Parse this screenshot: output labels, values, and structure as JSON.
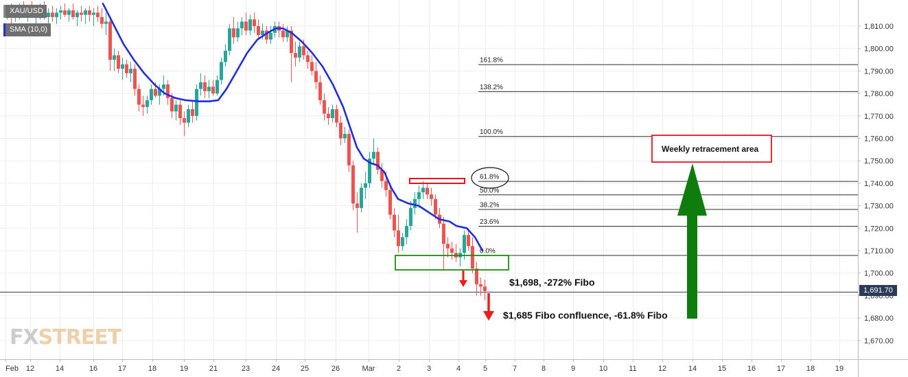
{
  "chart_data": {
    "type": "candlestick",
    "symbol": "XAU/USD",
    "indicator": "SMA (10,0)",
    "last_price_label": "1,691.70",
    "last_price": 1691.7,
    "y_axis": {
      "ticks": [
        1670,
        1680,
        1690,
        1700,
        1710,
        1720,
        1730,
        1740,
        1750,
        1760,
        1770,
        1780,
        1790,
        1800,
        1810
      ],
      "tick_labels": [
        "1,670.00",
        "1,680.00",
        "1,690.00",
        "1,700.00",
        "1,710.00",
        "1,720.00",
        "1,730.00",
        "1,740.00",
        "1,750.00",
        "1,760.00",
        "1,770.00",
        "1,780.00",
        "1,790.00",
        "1,800.00",
        "1,810.00"
      ],
      "range": [
        1662,
        1821
      ]
    },
    "x_axis": {
      "labels": [
        "Feb",
        "12",
        "14",
        "16",
        "17",
        "18",
        "19",
        "21",
        "23",
        "24",
        "25",
        "26",
        "Mar",
        "2",
        "3",
        "4",
        "5",
        "7",
        "8",
        "9",
        "10",
        "11",
        "12",
        "14",
        "15",
        "16",
        "17",
        "18",
        "19"
      ],
      "range": [
        -0.5,
        297.5
      ]
    },
    "candles": [
      {
        "x": 10,
        "o": 1816,
        "h": 1819,
        "l": 1813,
        "c": 1817
      },
      {
        "x": 16,
        "o": 1817,
        "h": 1820,
        "l": 1810,
        "c": 1815
      },
      {
        "x": 22,
        "o": 1815,
        "h": 1818,
        "l": 1812,
        "c": 1816
      },
      {
        "x": 28,
        "o": 1816,
        "h": 1820,
        "l": 1813,
        "c": 1818
      },
      {
        "x": 34,
        "o": 1818,
        "h": 1821,
        "l": 1814,
        "c": 1815
      },
      {
        "x": 40,
        "o": 1815,
        "h": 1819,
        "l": 1812,
        "c": 1817
      },
      {
        "x": 46,
        "o": 1817,
        "h": 1821,
        "l": 1814,
        "c": 1815
      },
      {
        "x": 52,
        "o": 1815,
        "h": 1818,
        "l": 1810,
        "c": 1816
      },
      {
        "x": 58,
        "o": 1816,
        "h": 1820,
        "l": 1813,
        "c": 1818
      },
      {
        "x": 64,
        "o": 1818,
        "h": 1821,
        "l": 1813,
        "c": 1814
      },
      {
        "x": 70,
        "o": 1814,
        "h": 1818,
        "l": 1811,
        "c": 1816
      },
      {
        "x": 76,
        "o": 1816,
        "h": 1819,
        "l": 1812,
        "c": 1814
      },
      {
        "x": 82,
        "o": 1814,
        "h": 1818,
        "l": 1811,
        "c": 1816
      },
      {
        "x": 88,
        "o": 1816,
        "h": 1819,
        "l": 1813,
        "c": 1817
      },
      {
        "x": 94,
        "o": 1817,
        "h": 1820,
        "l": 1814,
        "c": 1815
      },
      {
        "x": 100,
        "o": 1815,
        "h": 1818,
        "l": 1812,
        "c": 1817
      },
      {
        "x": 106,
        "o": 1817,
        "h": 1820,
        "l": 1813,
        "c": 1814
      },
      {
        "x": 112,
        "o": 1814,
        "h": 1817,
        "l": 1810,
        "c": 1816
      },
      {
        "x": 118,
        "o": 1816,
        "h": 1819,
        "l": 1812,
        "c": 1815
      },
      {
        "x": 124,
        "o": 1815,
        "h": 1818,
        "l": 1811,
        "c": 1817
      },
      {
        "x": 130,
        "o": 1817,
        "h": 1819,
        "l": 1812,
        "c": 1815
      },
      {
        "x": 136,
        "o": 1815,
        "h": 1818,
        "l": 1810,
        "c": 1816
      },
      {
        "x": 142,
        "o": 1816,
        "h": 1819,
        "l": 1812,
        "c": 1814
      },
      {
        "x": 148,
        "o": 1814,
        "h": 1818,
        "l": 1809,
        "c": 1811
      },
      {
        "x": 154,
        "o": 1811,
        "h": 1816,
        "l": 1806,
        "c": 1812
      },
      {
        "x": 160,
        "o": 1812,
        "h": 1813,
        "l": 1790,
        "c": 1795
      },
      {
        "x": 166,
        "o": 1795,
        "h": 1800,
        "l": 1790,
        "c": 1797
      },
      {
        "x": 172,
        "o": 1797,
        "h": 1799,
        "l": 1789,
        "c": 1791
      },
      {
        "x": 178,
        "o": 1791,
        "h": 1796,
        "l": 1786,
        "c": 1793
      },
      {
        "x": 184,
        "o": 1793,
        "h": 1795,
        "l": 1787,
        "c": 1789
      },
      {
        "x": 190,
        "o": 1789,
        "h": 1794,
        "l": 1785,
        "c": 1791
      },
      {
        "x": 196,
        "o": 1791,
        "h": 1793,
        "l": 1779,
        "c": 1782
      },
      {
        "x": 202,
        "o": 1782,
        "h": 1784,
        "l": 1772,
        "c": 1775
      },
      {
        "x": 208,
        "o": 1775,
        "h": 1779,
        "l": 1770,
        "c": 1774
      },
      {
        "x": 214,
        "o": 1774,
        "h": 1779,
        "l": 1771,
        "c": 1777
      },
      {
        "x": 220,
        "o": 1777,
        "h": 1784,
        "l": 1775,
        "c": 1782
      },
      {
        "x": 226,
        "o": 1782,
        "h": 1785,
        "l": 1778,
        "c": 1779
      },
      {
        "x": 232,
        "o": 1779,
        "h": 1784,
        "l": 1775,
        "c": 1782
      },
      {
        "x": 238,
        "o": 1782,
        "h": 1788,
        "l": 1779,
        "c": 1784
      },
      {
        "x": 244,
        "o": 1784,
        "h": 1786,
        "l": 1775,
        "c": 1778
      },
      {
        "x": 250,
        "o": 1778,
        "h": 1780,
        "l": 1769,
        "c": 1772
      },
      {
        "x": 256,
        "o": 1772,
        "h": 1777,
        "l": 1768,
        "c": 1775
      },
      {
        "x": 262,
        "o": 1775,
        "h": 1777,
        "l": 1766,
        "c": 1769
      },
      {
        "x": 268,
        "o": 1769,
        "h": 1772,
        "l": 1761,
        "c": 1767
      },
      {
        "x": 274,
        "o": 1767,
        "h": 1775,
        "l": 1765,
        "c": 1773
      },
      {
        "x": 280,
        "o": 1773,
        "h": 1777,
        "l": 1767,
        "c": 1770
      },
      {
        "x": 286,
        "o": 1770,
        "h": 1784,
        "l": 1768,
        "c": 1782
      },
      {
        "x": 292,
        "o": 1782,
        "h": 1789,
        "l": 1779,
        "c": 1785
      },
      {
        "x": 298,
        "o": 1785,
        "h": 1788,
        "l": 1778,
        "c": 1781
      },
      {
        "x": 304,
        "o": 1781,
        "h": 1786,
        "l": 1778,
        "c": 1783
      },
      {
        "x": 310,
        "o": 1783,
        "h": 1786,
        "l": 1779,
        "c": 1780
      },
      {
        "x": 316,
        "o": 1780,
        "h": 1788,
        "l": 1779,
        "c": 1786
      },
      {
        "x": 322,
        "o": 1786,
        "h": 1796,
        "l": 1784,
        "c": 1794
      },
      {
        "x": 328,
        "o": 1794,
        "h": 1802,
        "l": 1792,
        "c": 1799
      },
      {
        "x": 334,
        "o": 1799,
        "h": 1811,
        "l": 1797,
        "c": 1809
      },
      {
        "x": 340,
        "o": 1809,
        "h": 1814,
        "l": 1802,
        "c": 1805
      },
      {
        "x": 346,
        "o": 1805,
        "h": 1812,
        "l": 1803,
        "c": 1809
      },
      {
        "x": 352,
        "o": 1809,
        "h": 1814,
        "l": 1806,
        "c": 1812
      },
      {
        "x": 358,
        "o": 1812,
        "h": 1816,
        "l": 1806,
        "c": 1808
      },
      {
        "x": 364,
        "o": 1808,
        "h": 1815,
        "l": 1806,
        "c": 1813
      },
      {
        "x": 370,
        "o": 1813,
        "h": 1816,
        "l": 1807,
        "c": 1810
      },
      {
        "x": 376,
        "o": 1810,
        "h": 1813,
        "l": 1804,
        "c": 1806
      },
      {
        "x": 382,
        "o": 1806,
        "h": 1811,
        "l": 1804,
        "c": 1808
      },
      {
        "x": 388,
        "o": 1808,
        "h": 1810,
        "l": 1802,
        "c": 1804
      },
      {
        "x": 394,
        "o": 1804,
        "h": 1810,
        "l": 1802,
        "c": 1807
      },
      {
        "x": 400,
        "o": 1807,
        "h": 1812,
        "l": 1805,
        "c": 1810
      },
      {
        "x": 406,
        "o": 1810,
        "h": 1812,
        "l": 1805,
        "c": 1808
      },
      {
        "x": 412,
        "o": 1808,
        "h": 1811,
        "l": 1803,
        "c": 1805
      },
      {
        "x": 418,
        "o": 1805,
        "h": 1810,
        "l": 1803,
        "c": 1808
      },
      {
        "x": 424,
        "o": 1808,
        "h": 1810,
        "l": 1785,
        "c": 1798
      },
      {
        "x": 430,
        "o": 1798,
        "h": 1803,
        "l": 1792,
        "c": 1796
      },
      {
        "x": 436,
        "o": 1796,
        "h": 1803,
        "l": 1794,
        "c": 1801
      },
      {
        "x": 442,
        "o": 1801,
        "h": 1804,
        "l": 1795,
        "c": 1797
      },
      {
        "x": 448,
        "o": 1797,
        "h": 1799,
        "l": 1791,
        "c": 1794
      },
      {
        "x": 454,
        "o": 1794,
        "h": 1797,
        "l": 1788,
        "c": 1790
      },
      {
        "x": 460,
        "o": 1790,
        "h": 1794,
        "l": 1782,
        "c": 1785
      },
      {
        "x": 466,
        "o": 1785,
        "h": 1788,
        "l": 1775,
        "c": 1777
      },
      {
        "x": 472,
        "o": 1777,
        "h": 1780,
        "l": 1768,
        "c": 1771
      },
      {
        "x": 478,
        "o": 1771,
        "h": 1774,
        "l": 1766,
        "c": 1769
      },
      {
        "x": 484,
        "o": 1769,
        "h": 1775,
        "l": 1767,
        "c": 1773
      },
      {
        "x": 490,
        "o": 1773,
        "h": 1775,
        "l": 1765,
        "c": 1767
      },
      {
        "x": 496,
        "o": 1767,
        "h": 1770,
        "l": 1757,
        "c": 1760
      },
      {
        "x": 502,
        "o": 1760,
        "h": 1765,
        "l": 1758,
        "c": 1762
      },
      {
        "x": 508,
        "o": 1762,
        "h": 1764,
        "l": 1745,
        "c": 1748
      },
      {
        "x": 514,
        "o": 1748,
        "h": 1750,
        "l": 1728,
        "c": 1731
      },
      {
        "x": 520,
        "o": 1731,
        "h": 1736,
        "l": 1718,
        "c": 1729
      },
      {
        "x": 526,
        "o": 1729,
        "h": 1740,
        "l": 1727,
        "c": 1738
      },
      {
        "x": 532,
        "o": 1738,
        "h": 1745,
        "l": 1733,
        "c": 1740
      },
      {
        "x": 538,
        "o": 1740,
        "h": 1754,
        "l": 1738,
        "c": 1751
      },
      {
        "x": 544,
        "o": 1751,
        "h": 1760,
        "l": 1748,
        "c": 1754
      },
      {
        "x": 550,
        "o": 1754,
        "h": 1756,
        "l": 1744,
        "c": 1746
      },
      {
        "x": 556,
        "o": 1746,
        "h": 1749,
        "l": 1738,
        "c": 1741
      },
      {
        "x": 562,
        "o": 1741,
        "h": 1745,
        "l": 1734,
        "c": 1737
      },
      {
        "x": 568,
        "o": 1737,
        "h": 1740,
        "l": 1724,
        "c": 1726
      },
      {
        "x": 574,
        "o": 1726,
        "h": 1729,
        "l": 1716,
        "c": 1719
      },
      {
        "x": 580,
        "o": 1719,
        "h": 1726,
        "l": 1709,
        "c": 1712
      },
      {
        "x": 586,
        "o": 1712,
        "h": 1718,
        "l": 1710,
        "c": 1716
      },
      {
        "x": 592,
        "o": 1716,
        "h": 1724,
        "l": 1713,
        "c": 1721
      },
      {
        "x": 598,
        "o": 1721,
        "h": 1732,
        "l": 1719,
        "c": 1729
      },
      {
        "x": 604,
        "o": 1729,
        "h": 1736,
        "l": 1726,
        "c": 1733
      },
      {
        "x": 610,
        "o": 1733,
        "h": 1739,
        "l": 1729,
        "c": 1736
      },
      {
        "x": 616,
        "o": 1736,
        "h": 1741,
        "l": 1733,
        "c": 1738
      },
      {
        "x": 622,
        "o": 1738,
        "h": 1740,
        "l": 1733,
        "c": 1735
      },
      {
        "x": 628,
        "o": 1735,
        "h": 1738,
        "l": 1730,
        "c": 1733
      },
      {
        "x": 634,
        "o": 1733,
        "h": 1735,
        "l": 1724,
        "c": 1726
      },
      {
        "x": 640,
        "o": 1726,
        "h": 1729,
        "l": 1720,
        "c": 1722
      },
      {
        "x": 646,
        "o": 1722,
        "h": 1725,
        "l": 1701,
        "c": 1713
      },
      {
        "x": 652,
        "o": 1713,
        "h": 1716,
        "l": 1707,
        "c": 1711
      },
      {
        "x": 658,
        "o": 1711,
        "h": 1714,
        "l": 1706,
        "c": 1709
      },
      {
        "x": 664,
        "o": 1709,
        "h": 1713,
        "l": 1705,
        "c": 1707
      },
      {
        "x": 670,
        "o": 1707,
        "h": 1711,
        "l": 1703,
        "c": 1709
      },
      {
        "x": 676,
        "o": 1709,
        "h": 1719,
        "l": 1706,
        "c": 1717
      },
      {
        "x": 682,
        "o": 1717,
        "h": 1720,
        "l": 1710,
        "c": 1712
      },
      {
        "x": 688,
        "o": 1712,
        "h": 1716,
        "l": 1700,
        "c": 1702
      },
      {
        "x": 694,
        "o": 1702,
        "h": 1705,
        "l": 1690,
        "c": 1695
      },
      {
        "x": 700,
        "o": 1695,
        "h": 1698,
        "l": 1690,
        "c": 1694
      },
      {
        "x": 706,
        "o": 1694,
        "h": 1697,
        "l": 1688,
        "c": 1692
      }
    ],
    "sma": [
      {
        "x": 150,
        "y": 1820
      },
      {
        "x": 160,
        "y": 1814
      },
      {
        "x": 170,
        "y": 1808
      },
      {
        "x": 180,
        "y": 1802
      },
      {
        "x": 195,
        "y": 1795
      },
      {
        "x": 210,
        "y": 1789
      },
      {
        "x": 225,
        "y": 1784
      },
      {
        "x": 240,
        "y": 1780
      },
      {
        "x": 255,
        "y": 1778
      },
      {
        "x": 270,
        "y": 1777
      },
      {
        "x": 290,
        "y": 1776.5
      },
      {
        "x": 305,
        "y": 1776.5
      },
      {
        "x": 318,
        "y": 1777
      },
      {
        "x": 330,
        "y": 1782
      },
      {
        "x": 345,
        "y": 1790
      },
      {
        "x": 360,
        "y": 1798
      },
      {
        "x": 375,
        "y": 1804
      },
      {
        "x": 390,
        "y": 1807
      },
      {
        "x": 402,
        "y": 1809
      },
      {
        "x": 412,
        "y": 1809
      },
      {
        "x": 425,
        "y": 1807
      },
      {
        "x": 440,
        "y": 1803
      },
      {
        "x": 455,
        "y": 1798
      },
      {
        "x": 470,
        "y": 1792
      },
      {
        "x": 485,
        "y": 1784
      },
      {
        "x": 500,
        "y": 1774
      },
      {
        "x": 510,
        "y": 1765
      },
      {
        "x": 520,
        "y": 1756
      },
      {
        "x": 530,
        "y": 1751
      },
      {
        "x": 540,
        "y": 1749
      },
      {
        "x": 550,
        "y": 1748
      },
      {
        "x": 560,
        "y": 1745
      },
      {
        "x": 570,
        "y": 1738
      },
      {
        "x": 580,
        "y": 1733
      },
      {
        "x": 595,
        "y": 1731
      },
      {
        "x": 610,
        "y": 1730
      },
      {
        "x": 620,
        "y": 1728
      },
      {
        "x": 630,
        "y": 1726
      },
      {
        "x": 640,
        "y": 1724
      },
      {
        "x": 655,
        "y": 1723
      },
      {
        "x": 665,
        "y": 1721
      },
      {
        "x": 680,
        "y": 1720
      },
      {
        "x": 692,
        "y": 1716
      },
      {
        "x": 703,
        "y": 1710
      }
    ],
    "fib_levels": [
      {
        "label": "161.8%",
        "value": 1793
      },
      {
        "label": "138.2%",
        "value": 1781
      },
      {
        "label": "100.0%",
        "value": 1761
      },
      {
        "label": "61.8%",
        "value": 1741
      },
      {
        "label": "50.0%",
        "value": 1735
      },
      {
        "label": "38.2%",
        "value": 1728.5
      },
      {
        "label": "23.6%",
        "value": 1721
      },
      {
        "label": "0.0%",
        "value": 1708
      }
    ],
    "annotations": {
      "weekly_area_label": "Weekly retracement area",
      "fibo_272_label": "$1,698, -272% Fibo",
      "fibo_confluence_label": "$1,685 Fibo confluence, -61.8% Fibo"
    },
    "colors": {
      "bull": "#26a69a",
      "bear": "#ef5350",
      "sma": "#1f2de0",
      "fib_line": "#2b2b2b",
      "grid": "#ededed",
      "annot_red": "#e8141c",
      "annot_green": "#1f8a13",
      "arrow_green": "#0e7d0e",
      "arrow_red": "#ee1c1c",
      "price_line": "#2b3a57"
    }
  },
  "watermark": {
    "part1": "FX",
    "part2": "STREET"
  }
}
